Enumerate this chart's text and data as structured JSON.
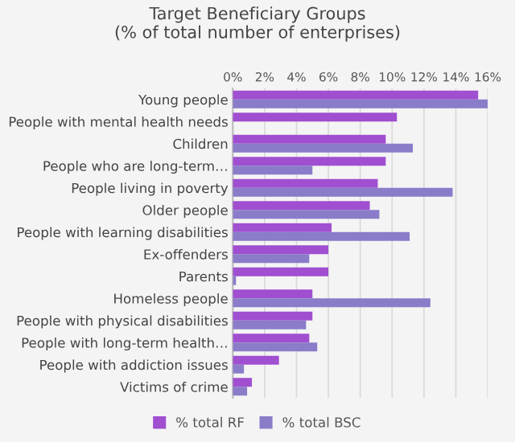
{
  "chart_data": {
    "type": "bar",
    "orientation": "horizontal",
    "title": "Target Beneficiary Groups\n(% of total number of enterprises)",
    "categories": [
      "Young people",
      "People with mental health needs",
      "Children",
      "People who are long-term…",
      "People living in poverty",
      "Older people",
      "People with learning disabilities",
      "Ex-offenders",
      "Parents",
      "Homeless people",
      "People with physical disabilities",
      "People with long-term health…",
      "People with addiction issues",
      "Victims of crime"
    ],
    "series": [
      {
        "name": "% total RF",
        "color": "#a04fd0",
        "values": [
          15.4,
          10.3,
          9.6,
          9.6,
          9.1,
          8.6,
          6.2,
          6.0,
          6.0,
          5.0,
          5.0,
          4.8,
          2.9,
          1.2
        ]
      },
      {
        "name": "% total BSC",
        "color": "#8a7cc9",
        "values": [
          16.0,
          0,
          11.3,
          5.0,
          13.8,
          9.2,
          11.1,
          4.8,
          0.2,
          12.4,
          4.6,
          5.3,
          0.7,
          0.9
        ]
      }
    ],
    "xlim": [
      0,
      16
    ],
    "xticks": [
      {
        "value": 0,
        "label": "0%"
      },
      {
        "value": 2,
        "label": "2%"
      },
      {
        "value": 4,
        "label": "4%"
      },
      {
        "value": 6,
        "label": "6%"
      },
      {
        "value": 8,
        "label": "8%"
      },
      {
        "value": 10,
        "label": "10%"
      },
      {
        "value": 12,
        "label": "12%"
      },
      {
        "value": 14,
        "label": "14%"
      },
      {
        "value": 16,
        "label": "16%"
      }
    ],
    "grid": "x",
    "legend": "bottom"
  }
}
